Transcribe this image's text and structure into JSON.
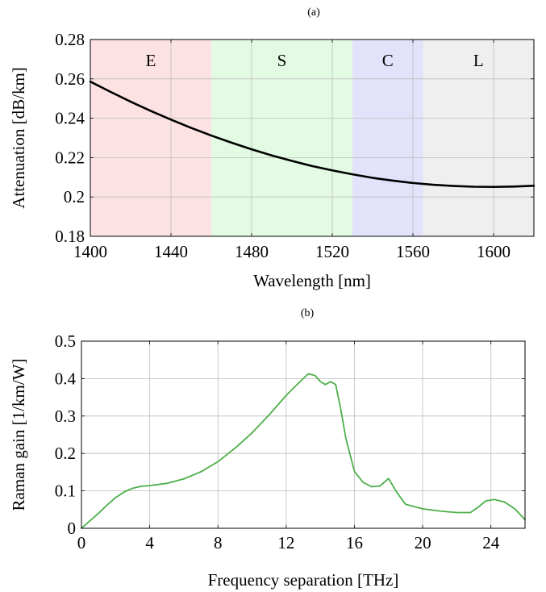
{
  "chart_data": [
    {
      "type": "line",
      "title": "(a)",
      "xlabel": "Wavelength [nm]",
      "ylabel": "Attenuation [dB/km]",
      "xlim": [
        1400,
        1620
      ],
      "ylim": [
        0.18,
        0.28
      ],
      "xticks": [
        1400,
        1440,
        1480,
        1520,
        1560,
        1600
      ],
      "yticks": [
        0.18,
        0.2,
        0.22,
        0.24,
        0.26,
        0.28
      ],
      "ytick_labels": [
        "0.18",
        "0.2",
        "0.22",
        "0.24",
        "0.26",
        "0.28"
      ],
      "grid": true,
      "bands": [
        {
          "name": "E",
          "from": 1400,
          "to": 1460,
          "color": "#fde2e4"
        },
        {
          "name": "S",
          "from": 1460,
          "to": 1530,
          "color": "#e3fbe3"
        },
        {
          "name": "C",
          "from": 1530,
          "to": 1565,
          "color": "#e2e3fb"
        },
        {
          "name": "L",
          "from": 1565,
          "to": 1620,
          "color": "#efefef"
        }
      ],
      "series": [
        {
          "color": "#000000",
          "x": [
            1400,
            1410,
            1420,
            1430,
            1440,
            1450,
            1460,
            1470,
            1480,
            1490,
            1500,
            1510,
            1520,
            1530,
            1540,
            1550,
            1560,
            1570,
            1580,
            1590,
            1600,
            1610,
            1620
          ],
          "y": [
            0.2586,
            0.2534,
            0.2484,
            0.2437,
            0.2393,
            0.2351,
            0.2312,
            0.2276,
            0.2242,
            0.2211,
            0.2183,
            0.2157,
            0.2135,
            0.2115,
            0.2097,
            0.2083,
            0.2071,
            0.2062,
            0.2056,
            0.2052,
            0.2051,
            0.2053,
            0.2057
          ]
        }
      ]
    },
    {
      "type": "line",
      "title": "(b)",
      "xlabel": "Frequency separation [THz]",
      "ylabel": "Raman gain [1/km/W]",
      "xlim": [
        0,
        26
      ],
      "ylim": [
        0,
        0.5
      ],
      "xticks": [
        0,
        4,
        8,
        12,
        16,
        20,
        24
      ],
      "yticks": [
        0,
        0.1,
        0.2,
        0.3,
        0.4,
        0.5
      ],
      "ytick_labels": [
        "0",
        "0.1",
        "0.2",
        "0.3",
        "0.4",
        "0.5"
      ],
      "grid": true,
      "series": [
        {
          "color": "#4daf4a",
          "x": [
            0,
            0.5,
            1,
            1.5,
            2,
            2.5,
            3,
            3.5,
            4,
            5,
            6,
            7,
            8,
            9,
            10,
            11,
            12,
            12.5,
            13,
            13.3,
            13.7,
            14,
            14.3,
            14.6,
            14.9,
            15.2,
            15.5,
            16,
            16.5,
            17,
            17.5,
            18,
            18.5,
            19,
            20,
            21,
            22,
            22.8,
            23.3,
            23.7,
            24.2,
            24.8,
            25.4,
            26
          ],
          "y": [
            0,
            0.02,
            0.04,
            0.062,
            0.082,
            0.097,
            0.107,
            0.112,
            0.114,
            0.12,
            0.132,
            0.151,
            0.178,
            0.214,
            0.255,
            0.303,
            0.355,
            0.378,
            0.4,
            0.413,
            0.408,
            0.392,
            0.384,
            0.392,
            0.384,
            0.318,
            0.24,
            0.152,
            0.123,
            0.111,
            0.113,
            0.133,
            0.095,
            0.064,
            0.052,
            0.046,
            0.042,
            0.042,
            0.058,
            0.073,
            0.077,
            0.07,
            0.052,
            0.023
          ]
        }
      ]
    }
  ]
}
